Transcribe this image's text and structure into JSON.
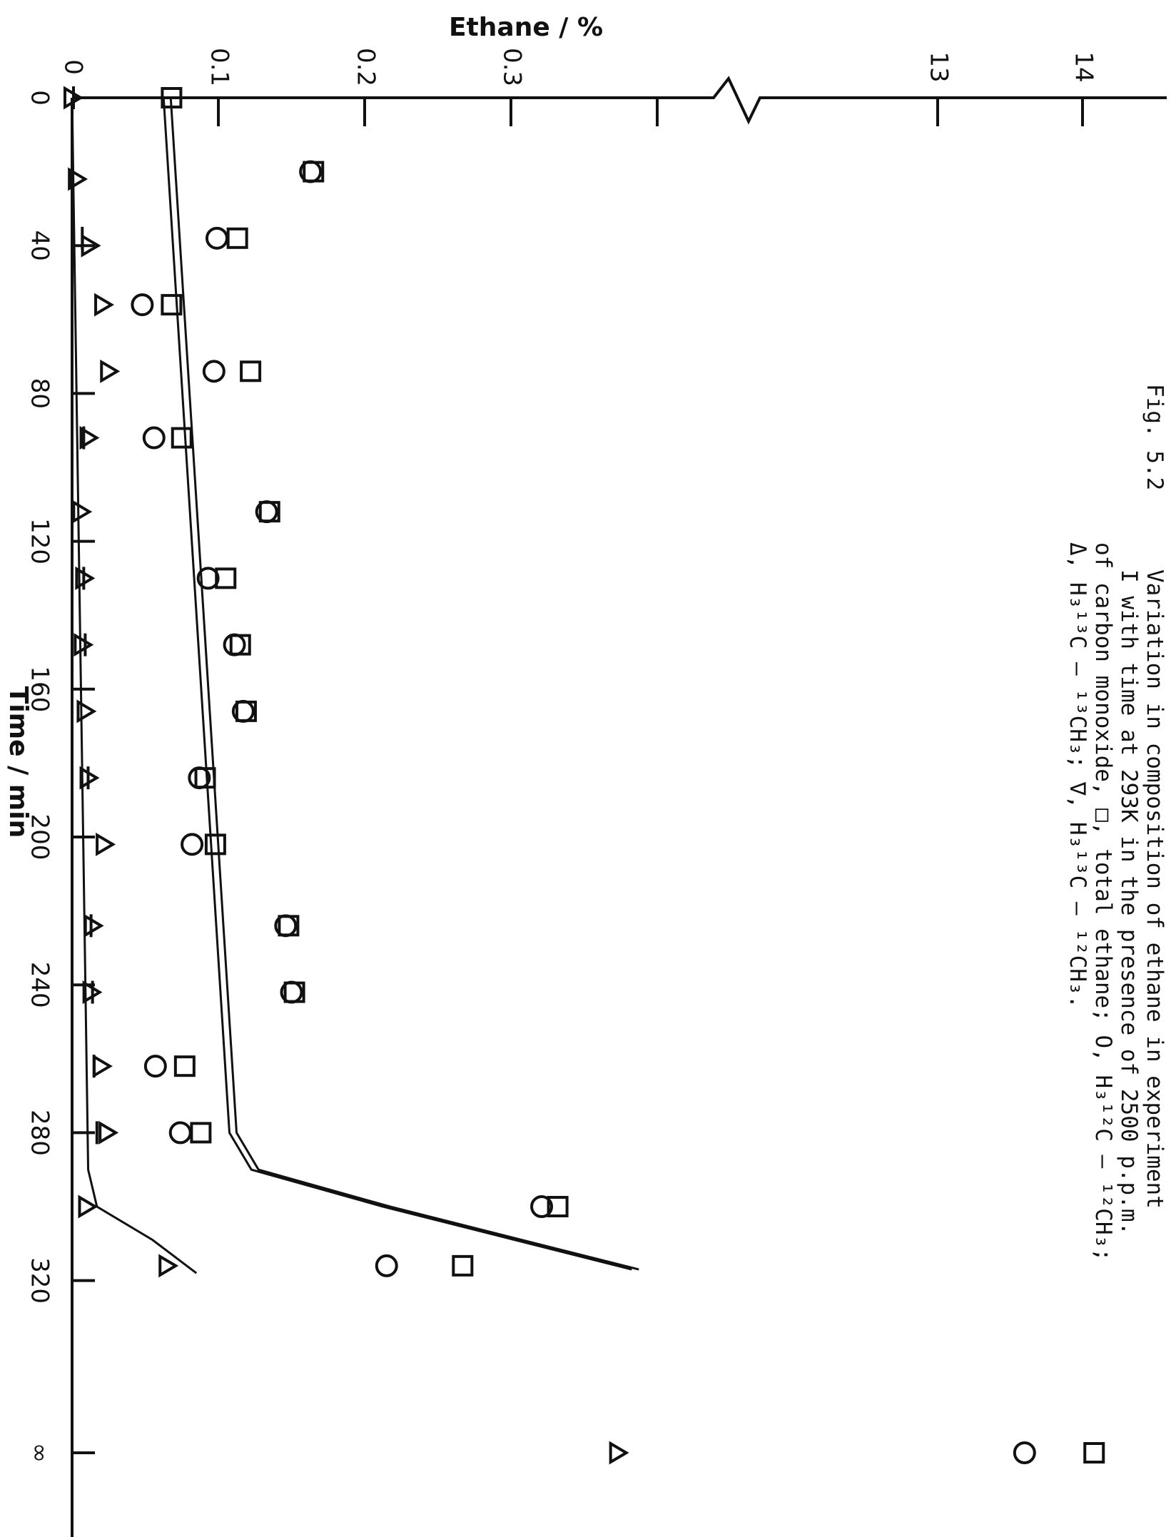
{
  "chart_data": {
    "type": "scatter",
    "orientation": "rotated 90 degrees clockwise",
    "caption": {
      "figure_label": "Fig. 5.2",
      "lines": [
        "Variation in composition of ethane in experiment",
        "I with time at 293K in the presence of 2500 p.p.m.",
        "of carbon monoxide, □, total ethane; O, H₃¹²C — ¹²CH₃;",
        "Δ, H₃¹³C — ¹³CH₃; ∇, H₃¹³C — ¹²CH₃."
      ]
    },
    "x_axis": {
      "label": "Time / min",
      "ticks": [
        "0",
        "40",
        "80",
        "120",
        "160",
        "200",
        "240",
        "280",
        "320",
        "∞"
      ],
      "tick_values": [
        0,
        40,
        80,
        120,
        160,
        200,
        240,
        280,
        320,
        370
      ],
      "range": [
        0,
        400
      ],
      "infinity_value": 370
    },
    "y_axis": {
      "label": "Ethane / %",
      "ticks": [
        "0",
        "0.1",
        "0.2",
        "0.3",
        "13",
        "14"
      ],
      "segments": [
        {
          "range": [
            0,
            0.4
          ],
          "ticks": [
            0,
            0.1,
            0.2,
            0.3,
            0.4
          ],
          "labels": [
            "0",
            "0.1",
            "0.2",
            "0.3",
            ""
          ]
        },
        {
          "range": [
            12.3,
            14.3
          ],
          "ticks": [
            13,
            14
          ],
          "labels": [
            "13",
            "14"
          ]
        }
      ],
      "break_between": [
        0.4,
        12.3
      ]
    },
    "series": [
      {
        "name": "total ethane",
        "marker": "square",
        "points": [
          [
            0,
            0.068
          ],
          [
            20,
            0.165
          ],
          [
            38,
            0.113
          ],
          [
            56,
            0.068
          ],
          [
            74,
            0.122
          ],
          [
            92,
            0.075
          ],
          [
            112,
            0.135
          ],
          [
            130,
            0.105
          ],
          [
            148,
            0.115
          ],
          [
            166,
            0.119
          ],
          [
            184,
            0.091
          ],
          [
            202,
            0.098
          ],
          [
            224,
            0.148
          ],
          [
            242,
            0.152
          ],
          [
            262,
            0.077
          ],
          [
            280,
            0.088
          ],
          [
            300,
            0.332
          ],
          [
            316,
            0.267
          ],
          [
            370,
            14.08
          ]
        ]
      },
      {
        "name": "H₃¹²C — ¹²CH₃",
        "marker": "circle",
        "points": [
          [
            20,
            0.163
          ],
          [
            38,
            0.099
          ],
          [
            56,
            0.048
          ],
          [
            74,
            0.097
          ],
          [
            92,
            0.056
          ],
          [
            112,
            0.133
          ],
          [
            130,
            0.093
          ],
          [
            148,
            0.111
          ],
          [
            166,
            0.117
          ],
          [
            184,
            0.087
          ],
          [
            202,
            0.082
          ],
          [
            224,
            0.146
          ],
          [
            242,
            0.15
          ],
          [
            262,
            0.057
          ],
          [
            280,
            0.074
          ],
          [
            300,
            0.321
          ],
          [
            316,
            0.215
          ],
          [
            370,
            13.6
          ]
        ]
      },
      {
        "name": "H₃¹³C — ¹³CH₃",
        "marker": "triangle",
        "points": [
          [
            0,
            0.0
          ],
          [
            22,
            0.003
          ],
          [
            40,
            0.012
          ],
          [
            56,
            0.021
          ],
          [
            74,
            0.025
          ],
          [
            92,
            0.011
          ],
          [
            112,
            0.006
          ],
          [
            130,
            0.008
          ],
          [
            148,
            0.007
          ],
          [
            166,
            0.009
          ],
          [
            184,
            0.011
          ],
          [
            202,
            0.022
          ],
          [
            224,
            0.014
          ],
          [
            242,
            0.013
          ],
          [
            262,
            0.02
          ],
          [
            280,
            0.024
          ],
          [
            300,
            0.01
          ],
          [
            316,
            0.065
          ],
          [
            370,
            0.373
          ]
        ]
      },
      {
        "name": "H₃¹³C — ¹²CH₃",
        "marker": "inverted-triangle",
        "points": [
          [
            0,
            0.0
          ],
          [
            38,
            0.006
          ],
          [
            92,
            0.007
          ],
          [
            130,
            0.007
          ],
          [
            148,
            0.008
          ],
          [
            184,
            0.01
          ],
          [
            224,
            0.012
          ],
          [
            242,
            0.013
          ],
          [
            262,
            0.014
          ],
          [
            280,
            0.016
          ]
        ]
      }
    ],
    "fitted_curves": [
      {
        "of": "total ethane",
        "points": [
          [
            0,
            0.065
          ],
          [
            280,
            0.11
          ],
          [
            290,
            0.125
          ],
          [
            300,
            0.215
          ],
          [
            317,
            0.385
          ]
        ]
      },
      {
        "of": "H₃¹³C — ¹³CH₃",
        "points": [
          [
            0,
            0.0
          ],
          [
            290,
            0.011
          ],
          [
            300,
            0.017
          ],
          [
            309,
            0.055
          ],
          [
            318,
            0.085
          ]
        ]
      }
    ],
    "grid": false,
    "legend": "none (markers identified in caption)"
  }
}
